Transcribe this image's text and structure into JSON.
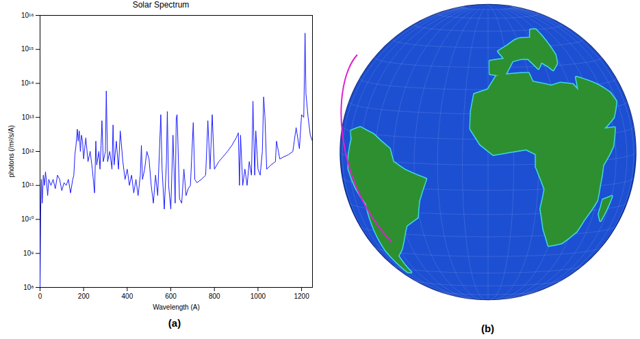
{
  "chart_data": {
    "type": "line",
    "panel": "(a)",
    "title": "Solar Spectrum",
    "x_label": "Wavelength (A)",
    "y_label": "photons (/m²/s/A)",
    "log": "y",
    "color": "#1a1aff",
    "xlim": [
      0,
      1250
    ],
    "xticks": [
      0,
      200,
      400,
      600,
      800,
      1000,
      1200
    ],
    "ylim": [
      100000000.0,
      1e+16
    ],
    "yticks": [
      {
        "value": 100000000.0,
        "label": "10⁸"
      },
      {
        "value": 1000000000.0,
        "label": "10⁹"
      },
      {
        "value": 10000000000.0,
        "label": "10¹⁰"
      },
      {
        "value": 100000000000.0,
        "label": "10¹¹"
      },
      {
        "value": 1000000000000.0,
        "label": "10¹²"
      },
      {
        "value": 10000000000000.0,
        "label": "10¹³"
      },
      {
        "value": 100000000000000.0,
        "label": "10¹⁴"
      },
      {
        "value": 1000000000000000.0,
        "label": "10¹⁵"
      },
      {
        "value": 1e+16,
        "label": "10¹⁶"
      }
    ],
    "x": [
      0,
      3,
      6,
      10,
      15,
      20,
      25,
      30,
      35,
      40,
      50,
      60,
      70,
      80,
      90,
      100,
      110,
      120,
      130,
      140,
      150,
      155,
      160,
      165,
      171,
      175,
      180,
      185,
      190,
      195,
      200,
      210,
      220,
      230,
      240,
      250,
      256,
      260,
      270,
      275,
      280,
      284,
      290,
      300,
      304,
      310,
      320,
      330,
      335,
      340,
      350,
      360,
      368,
      380,
      390,
      400,
      410,
      420,
      430,
      440,
      450,
      460,
      465,
      470,
      480,
      490,
      500,
      510,
      520,
      530,
      540,
      554,
      560,
      570,
      580,
      584,
      590,
      600,
      610,
      620,
      625,
      629,
      640,
      650,
      660,
      670,
      680,
      690,
      703,
      710,
      720,
      740,
      760,
      770,
      780,
      790,
      800,
      820,
      840,
      860,
      880,
      900,
      910,
      915,
      920,
      930,
      940,
      950,
      960,
      970,
      977,
      985,
      990,
      1000,
      1010,
      1020,
      1026,
      1032,
      1040,
      1060,
      1080,
      1085,
      1100,
      1120,
      1140,
      1160,
      1175,
      1190,
      1200,
      1210,
      1216,
      1220,
      1230,
      1240,
      1250
    ],
    "values": [
      100000000.0,
      20000000000.0,
      150000000000.0,
      30000000000.0,
      200000000000.0,
      100000000000.0,
      250000000000.0,
      120000000000.0,
      50000000000.0,
      150000000000.0,
      100000000000.0,
      150000000000.0,
      80000000000.0,
      200000000000.0,
      150000000000.0,
      70000000000.0,
      120000000000.0,
      100000000000.0,
      150000000000.0,
      60000000000.0,
      150000000000.0,
      200000000000.0,
      800000000000.0,
      1500000000000.0,
      4500000000000.0,
      2000000000000.0,
      4000000000000.0,
      1000000000000.0,
      3000000000000.0,
      2000000000000.0,
      600000000000.0,
      2500000000000.0,
      500000000000.0,
      1000000000000.0,
      300000000000.0,
      60000000000.0,
      2000000000000.0,
      400000000000.0,
      1000000000000.0,
      300000000000.0,
      1500000000000.0,
      8000000000000.0,
      500000000000.0,
      1000000000000.0,
      60000000000000.0,
      500000000000.0,
      1000000000000.0,
      300000000000.0,
      6000000000000.0,
      400000000000.0,
      2000000000000.0,
      300000000000.0,
      4000000000000.0,
      500000000000.0,
      150000000000.0,
      300000000000.0,
      100000000000.0,
      200000000000.0,
      60000000000.0,
      150000000000.0,
      50000000000.0,
      200000000000.0,
      1500000000000.0,
      150000000000.0,
      300000000000.0,
      1000000000000.0,
      600000000000.0,
      100000000000.0,
      30000000000.0,
      200000000000.0,
      50000000000.0,
      12000000000000.0,
      300000000000.0,
      20000000000.0,
      500000000000.0,
      15000000000000.0,
      100000000000.0,
      20000000000.0,
      3000000000000.0,
      30000000000.0,
      10000000000000.0,
      12000000000000.0,
      40000000000.0,
      30000000000.0,
      300000000000.0,
      50000000000.0,
      80000000000.0,
      100000000000.0,
      7000000000000.0,
      150000000000.0,
      120000000000.0,
      150000000000.0,
      200000000000.0,
      8000000000000.0,
      300000000000.0,
      12000000000000.0,
      300000000000.0,
      500000000000.0,
      700000000000.0,
      1000000000000.0,
      1500000000000.0,
      2500000000000.0,
      3500000000000.0,
      100000000000.0,
      3000000000000.0,
      100000000000.0,
      300000000000.0,
      100000000000.0,
      500000000000.0,
      200000000000.0,
      30000000000000.0,
      200000000000.0,
      4000000000000.0,
      300000000000.0,
      200000000000.0,
      1000000000000.0,
      40000000000000.0,
      10000000000000.0,
      300000000000.0,
      400000000000.0,
      500000000000.0,
      2000000000000.0,
      600000000000.0,
      700000000000.0,
      800000000000.0,
      1000000000000.0,
      5000000000000.0,
      1200000000000.0,
      12000000000000.0,
      10000000000000.0,
      3000000000000000.0,
      50000000000000.0,
      10000000000000.0,
      3000000000000.0,
      2000000000000.0
    ]
  },
  "map": {
    "panel": "(b)"
  }
}
